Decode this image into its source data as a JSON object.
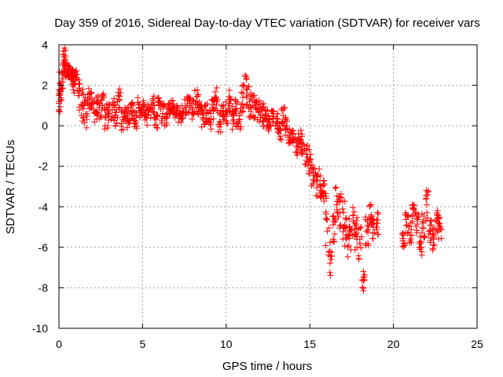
{
  "colors": {
    "series": "#ff0000",
    "grid": "#a0a0a0",
    "axis": "#000000",
    "background": "#ffffff"
  },
  "chart_data": {
    "type": "scatter",
    "title": "Day 359 of 2016, Sidereal Day-to-day VTEC variation (SDTVAR) for receiver vars",
    "xlabel": "GPS time / hours",
    "ylabel": "SDTVAR / TECUs",
    "xlim": [
      0,
      25
    ],
    "ylim": [
      -10,
      4
    ],
    "xticks": [
      0,
      5,
      10,
      15,
      20,
      25
    ],
    "yticks": [
      4,
      2,
      0,
      -2,
      -4,
      -6,
      -8,
      -10
    ],
    "xtick_labels": [
      "0",
      "5",
      "10",
      "15",
      "20",
      "25"
    ],
    "ytick_labels": [
      "4",
      "2",
      "0",
      "-2",
      "-4",
      "-6",
      "-8",
      "-10"
    ],
    "grid": true,
    "marker": "plus",
    "series": [
      {
        "name": "SDTVAR",
        "x": [
          0.0,
          0.1,
          0.2,
          0.3,
          0.4,
          0.5,
          0.6,
          0.7,
          0.8,
          0.9,
          1.0,
          1.2,
          1.4,
          1.6,
          1.8,
          2.0,
          2.2,
          2.4,
          2.6,
          2.8,
          3.0,
          3.2,
          3.4,
          3.6,
          3.8,
          4.0,
          4.2,
          4.4,
          4.6,
          4.8,
          5.0,
          5.2,
          5.4,
          5.6,
          5.8,
          6.0,
          6.2,
          6.4,
          6.6,
          6.8,
          7.0,
          7.2,
          7.4,
          7.6,
          7.8,
          8.0,
          8.2,
          8.4,
          8.6,
          8.8,
          9.0,
          9.2,
          9.4,
          9.6,
          9.8,
          10.0,
          10.2,
          10.4,
          10.6,
          10.8,
          11.0,
          11.2,
          11.4,
          11.6,
          11.8,
          12.0,
          12.2,
          12.4,
          12.6,
          12.8,
          13.0,
          13.2,
          13.4,
          13.6,
          13.8,
          14.0,
          14.2,
          14.4,
          14.6,
          14.8,
          15.0,
          15.2,
          15.4,
          15.6,
          15.8,
          16.0,
          16.2,
          16.4,
          16.6,
          16.8,
          17.0,
          17.2,
          17.4,
          17.6,
          17.8,
          18.0,
          18.2,
          18.4,
          18.6,
          18.8,
          19.0,
          20.6,
          20.8,
          21.0,
          21.2,
          21.4,
          21.6,
          21.8,
          22.0,
          22.2,
          22.4,
          22.6,
          22.8
        ],
        "y": [
          1.2,
          2.0,
          2.6,
          3.4,
          3.0,
          2.6,
          2.7,
          2.6,
          2.4,
          2.2,
          2.3,
          1.5,
          1.0,
          0.6,
          1.3,
          1.1,
          0.7,
          0.9,
          1.0,
          0.4,
          0.6,
          0.8,
          0.5,
          1.3,
          0.3,
          0.4,
          0.6,
          0.7,
          0.2,
          0.9,
          0.8,
          0.5,
          0.9,
          1.0,
          0.3,
          1.0,
          0.6,
          0.4,
          0.8,
          1.0,
          0.6,
          0.5,
          0.7,
          0.9,
          1.0,
          0.9,
          1.2,
          1.0,
          0.4,
          0.6,
          0.3,
          0.9,
          1.3,
          0.2,
          0.5,
          0.7,
          1.1,
          0.5,
          0.6,
          0.3,
          1.4,
          1.8,
          1.2,
          1.0,
          0.8,
          0.7,
          0.5,
          0.3,
          0.0,
          0.6,
          0.2,
          -0.2,
          0.5,
          0.0,
          -0.6,
          -0.4,
          -1.0,
          -0.7,
          -0.9,
          -1.4,
          -1.7,
          -2.3,
          -2.7,
          -2.9,
          -3.5,
          -4.6,
          -6.2,
          -5.6,
          -3.9,
          -4.3,
          -5.0,
          -5.6,
          -5.4,
          -4.7,
          -5.3,
          -5.8,
          -7.6,
          -5.2,
          -4.6,
          -5.0,
          -4.8,
          -5.4,
          -4.9,
          -5.4,
          -4.4,
          -4.6,
          -6.1,
          -4.8,
          -3.9,
          -5.2,
          -5.6,
          -4.7,
          -5.0
        ],
        "spread": [
          0.6,
          0.8,
          0.8,
          0.5,
          0.6,
          0.4,
          0.3,
          0.3,
          0.4,
          0.6,
          0.5,
          0.9,
          0.8,
          0.8,
          0.8,
          0.6,
          0.7,
          0.6,
          0.6,
          0.7,
          0.6,
          0.6,
          0.6,
          0.6,
          0.6,
          0.5,
          0.5,
          0.5,
          0.5,
          0.5,
          0.5,
          0.5,
          0.5,
          0.5,
          0.5,
          0.4,
          0.5,
          0.5,
          0.4,
          0.4,
          0.4,
          0.4,
          0.4,
          0.5,
          0.5,
          0.6,
          0.6,
          0.6,
          0.6,
          0.6,
          0.6,
          0.6,
          0.6,
          0.6,
          0.6,
          0.6,
          0.7,
          0.7,
          0.7,
          0.7,
          0.8,
          0.8,
          0.8,
          0.7,
          0.6,
          0.6,
          0.6,
          0.5,
          0.5,
          0.5,
          0.5,
          0.5,
          0.5,
          0.5,
          0.5,
          0.5,
          0.5,
          0.5,
          0.5,
          0.6,
          0.7,
          0.7,
          0.8,
          0.8,
          0.9,
          1.5,
          1.4,
          1.2,
          1.0,
          1.0,
          1.3,
          1.2,
          0.9,
          0.8,
          0.9,
          0.8,
          0.6,
          0.8,
          0.8,
          0.6,
          0.6,
          0.6,
          0.6,
          0.6,
          0.6,
          0.8,
          0.7,
          0.8,
          0.8,
          0.6,
          0.6,
          0.6,
          0.6
        ]
      }
    ]
  }
}
